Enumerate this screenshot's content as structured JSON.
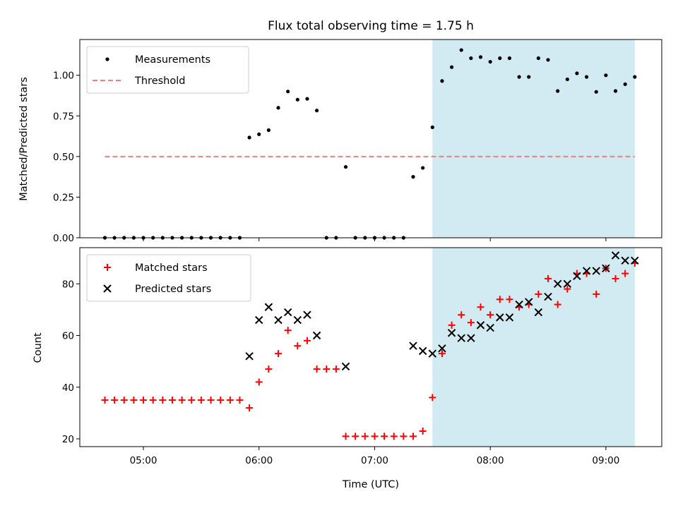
{
  "chart_data": [
    {
      "type": "scatter",
      "title": "Flux total observing time = 1.75 h",
      "ylabel": "Matched/Predicted stars",
      "xlim": [
        "04:27",
        "09:29"
      ],
      "ylim": [
        0,
        1.22
      ],
      "yticks": [
        "0.00",
        "0.25",
        "0.50",
        "0.75",
        "1.00"
      ],
      "highlight_span": {
        "x": [
          "07:30",
          "09:15"
        ],
        "color": "#add8e6"
      },
      "legend_position": "upper-left",
      "series": [
        {
          "name": "Measurements",
          "marker": "dot",
          "color": "#000000",
          "x": [
            "04:40",
            "04:45",
            "04:50",
            "04:55",
            "05:00",
            "05:05",
            "05:10",
            "05:15",
            "05:20",
            "05:25",
            "05:30",
            "05:35",
            "05:40",
            "05:45",
            "05:50",
            "05:55",
            "06:00",
            "06:05",
            "06:10",
            "06:15",
            "06:20",
            "06:25",
            "06:30",
            "06:35",
            "06:40",
            "06:45",
            "06:50",
            "06:55",
            "07:00",
            "07:05",
            "07:10",
            "07:15",
            "07:20",
            "07:25",
            "07:30",
            "07:35",
            "07:40",
            "07:45",
            "07:50",
            "07:55",
            "08:00",
            "08:05",
            "08:10",
            "08:15",
            "08:20",
            "08:25",
            "08:30",
            "08:35",
            "08:40",
            "08:45",
            "08:50",
            "08:55",
            "09:00",
            "09:05",
            "09:10",
            "09:15"
          ],
          "y": [
            0,
            0,
            0,
            0,
            0,
            0,
            0,
            0,
            0,
            0,
            0,
            0,
            0,
            0,
            0,
            0.617,
            0.637,
            0.662,
            0.8,
            0.9,
            0.85,
            0.855,
            0.783,
            0,
            0,
            0.436,
            0,
            0,
            0,
            0,
            0,
            0,
            0.375,
            0.43,
            0.68,
            0.965,
            1.05,
            1.155,
            1.105,
            1.112,
            1.083,
            1.105,
            1.105,
            0.99,
            0.99,
            1.105,
            1.095,
            0.903,
            0.975,
            1.012,
            0.99,
            0.898,
            1.0,
            0.903,
            0.945,
            0.99
          ]
        },
        {
          "name": "Threshold",
          "marker": "dashed-line",
          "color": "#f08080",
          "x": [
            "04:40",
            "09:15"
          ],
          "y": [
            0.5,
            0.5
          ]
        }
      ]
    },
    {
      "type": "scatter",
      "xlabel": "Time (UTC)",
      "ylabel": "Count",
      "xlim": [
        "04:27",
        "09:29"
      ],
      "ylim": [
        17,
        94
      ],
      "xticks": [
        "05:00",
        "06:00",
        "07:00",
        "08:00",
        "09:00"
      ],
      "yticks": [
        "20",
        "40",
        "60",
        "80"
      ],
      "highlight_span": {
        "x": [
          "07:30",
          "09:15"
        ],
        "color": "#add8e6"
      },
      "legend_position": "upper-left",
      "series": [
        {
          "name": "Matched stars",
          "marker": "plus",
          "color": "#ff0000",
          "x": [
            "04:40",
            "04:45",
            "04:50",
            "04:55",
            "05:00",
            "05:05",
            "05:10",
            "05:15",
            "05:20",
            "05:25",
            "05:30",
            "05:35",
            "05:40",
            "05:45",
            "05:50",
            "05:55",
            "06:00",
            "06:05",
            "06:10",
            "06:15",
            "06:20",
            "06:25",
            "06:30",
            "06:35",
            "06:40",
            "06:45",
            "06:50",
            "06:55",
            "07:00",
            "07:05",
            "07:10",
            "07:15",
            "07:20",
            "07:25",
            "07:30",
            "07:35",
            "07:40",
            "07:45",
            "07:50",
            "07:55",
            "08:00",
            "08:05",
            "08:10",
            "08:15",
            "08:20",
            "08:25",
            "08:30",
            "08:35",
            "08:40",
            "08:45",
            "08:50",
            "08:55",
            "09:00",
            "09:05",
            "09:10",
            "09:15"
          ],
          "y": [
            35,
            35,
            35,
            35,
            35,
            35,
            35,
            35,
            35,
            35,
            35,
            35,
            35,
            35,
            35,
            32,
            42,
            47,
            53,
            62,
            56,
            58,
            47,
            47,
            47,
            21,
            21,
            21,
            21,
            21,
            21,
            21,
            21,
            23,
            36,
            53,
            64,
            68,
            65,
            71,
            68,
            74,
            74,
            71,
            72,
            76,
            82,
            72,
            78,
            84,
            84,
            76,
            86,
            82,
            84,
            88
          ]
        },
        {
          "name": "Predicted stars",
          "marker": "x",
          "color": "#000000",
          "x": [
            "05:55",
            "06:00",
            "06:05",
            "06:10",
            "06:15",
            "06:20",
            "06:25",
            "06:30",
            "06:45",
            "07:20",
            "07:25",
            "07:30",
            "07:35",
            "07:40",
            "07:45",
            "07:50",
            "07:55",
            "08:00",
            "08:05",
            "08:10",
            "08:15",
            "08:20",
            "08:25",
            "08:30",
            "08:35",
            "08:40",
            "08:45",
            "08:50",
            "08:55",
            "09:00",
            "09:05",
            "09:10",
            "09:15"
          ],
          "y": [
            52,
            66,
            71,
            66,
            69,
            66,
            68,
            60,
            48,
            56,
            54,
            53,
            55,
            61,
            59,
            59,
            64,
            63,
            67,
            67,
            72,
            73,
            69,
            75,
            80,
            80,
            83,
            85,
            85,
            86,
            91,
            89,
            89
          ]
        }
      ]
    }
  ]
}
